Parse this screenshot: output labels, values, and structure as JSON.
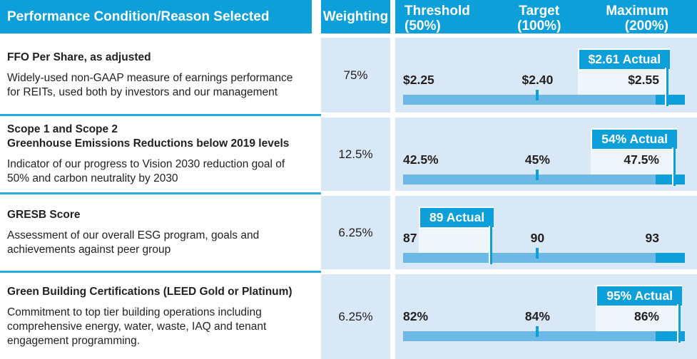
{
  "header": {
    "condition": "Performance Condition/Reason Selected",
    "weighting": "Weighting",
    "threshold": "Threshold\n(50%)",
    "target": "Target\n(100%)",
    "maximum": "Maximum\n(200%)"
  },
  "colors": {
    "brand_blue": "#0c9fda",
    "bar_light_blue": "#6cb8e6",
    "cell_background": "#d9e8f6",
    "row_separator": "#29abe2",
    "text": "#231f20"
  },
  "rows": [
    {
      "title": "FFO Per Share, as adjusted",
      "description": "Widely-used non-GAAP measure of earnings performance\nfor REITs, used both by investors and our management",
      "weighting": "75%",
      "chart": {
        "threshold": "$2.25",
        "target": "$2.40",
        "maximum": "$2.55",
        "actual": "$2.61 Actual",
        "actual_pct": 94.7
      }
    },
    {
      "title": "Scope 1 and Scope 2\nGreenhouse Emissions Reductions below 2019 levels",
      "description": "Indicator of our progress to Vision 2030 reduction goal of\n50% and carbon neutrality by 2030",
      "weighting": "12.5%",
      "chart": {
        "threshold": "42.5%",
        "target": "45%",
        "maximum": "47.5%",
        "actual": "54% Actual",
        "actual_pct": 97.2
      }
    },
    {
      "title": "GRESB Score",
      "description": "Assessment of our overall ESG program, goals and\nachievements against peer group",
      "weighting": "6.25%",
      "chart": {
        "threshold": "87",
        "target": "90",
        "maximum": "93",
        "actual": "89 Actual",
        "actual_pct": 32.2
      }
    },
    {
      "title": "Green Building Certifications (LEED Gold or Platinum)",
      "description": "Commitment to top tier building operations including\ncomprehensive energy, water, waste, IAQ and tenant\nengagement programming.",
      "weighting": "6.25%",
      "chart": {
        "threshold": "82%",
        "target": "84%",
        "maximum": "86%",
        "actual": "95% Actual",
        "actual_pct": 99.0
      }
    }
  ],
  "chart_data": {
    "type": "bar",
    "subtype": "bullet",
    "title": "Performance Condition/Reason Selected",
    "payout_scale": {
      "threshold": "50%",
      "target": "100%",
      "maximum": "200%"
    },
    "rows": [
      {
        "metric": "FFO Per Share, as adjusted",
        "weighting_pct": 75,
        "threshold": 2.25,
        "target": 2.4,
        "maximum": 2.55,
        "actual": 2.61,
        "unit": "$ per share"
      },
      {
        "metric": "Scope 1 and Scope 2 Greenhouse Emissions Reductions below 2019 levels",
        "weighting_pct": 12.5,
        "threshold": 42.5,
        "target": 45,
        "maximum": 47.5,
        "actual": 54,
        "unit": "%"
      },
      {
        "metric": "GRESB Score",
        "weighting_pct": 6.25,
        "threshold": 87,
        "target": 90,
        "maximum": 93,
        "actual": 89,
        "unit": "score"
      },
      {
        "metric": "Green Building Certifications (LEED Gold or Platinum)",
        "weighting_pct": 6.25,
        "threshold": 82,
        "target": 84,
        "maximum": 86,
        "actual": 95,
        "unit": "%"
      }
    ]
  }
}
